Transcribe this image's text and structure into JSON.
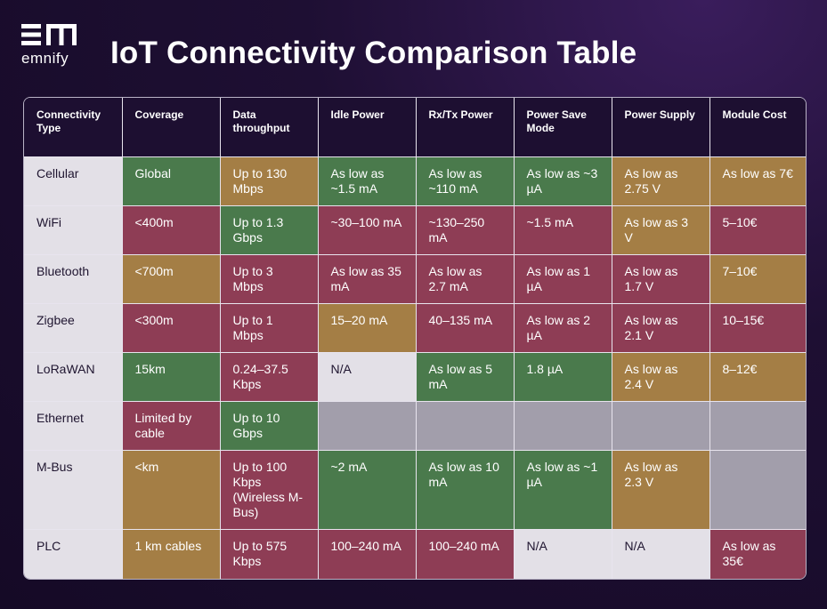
{
  "brand": {
    "logo_text": "emnify"
  },
  "title": "IoT Connectivity Comparison Table",
  "colors": {
    "good": "#4a7a4c",
    "bad": "#8e3d55",
    "medium": "#a47e45",
    "neutral": "#e3e0e7",
    "empty": "#a29eab",
    "header_bg": "#1d0f31"
  },
  "table": {
    "headers": [
      "Connectivity Type",
      "Coverage",
      "Data throughput",
      "Idle Power",
      "Rx/Tx Power",
      "Power Save Mode",
      "Power Supply",
      "Module Cost"
    ],
    "rows": [
      {
        "cells": [
          {
            "text": "Cellular",
            "c": "n"
          },
          {
            "text": "Global",
            "c": "g"
          },
          {
            "text": "Up to 130 Mbps",
            "c": "y"
          },
          {
            "text": "As low as ~1.5 mA",
            "c": "g"
          },
          {
            "text": "As low as ~110 mA",
            "c": "g"
          },
          {
            "text": "As low as ~3 µA",
            "c": "g"
          },
          {
            "text": "As low as 2.75 V",
            "c": "y"
          },
          {
            "text": "As low as 7€",
            "c": "y"
          }
        ]
      },
      {
        "cells": [
          {
            "text": "WiFi",
            "c": "n"
          },
          {
            "text": "<400m",
            "c": "r"
          },
          {
            "text": "Up to 1.3 Gbps",
            "c": "g"
          },
          {
            "text": "~30–100 mA",
            "c": "r"
          },
          {
            "text": "~130–250 mA",
            "c": "r"
          },
          {
            "text": "~1.5 mA",
            "c": "r"
          },
          {
            "text": "As low as 3 V",
            "c": "y"
          },
          {
            "text": "5–10€",
            "c": "r"
          }
        ]
      },
      {
        "cells": [
          {
            "text": "Bluetooth",
            "c": "n"
          },
          {
            "text": "<700m",
            "c": "y"
          },
          {
            "text": "Up to 3 Mbps",
            "c": "r"
          },
          {
            "text": "As low as 35 mA",
            "c": "r"
          },
          {
            "text": "As low as 2.7 mA",
            "c": "r"
          },
          {
            "text": "As low as 1 µA",
            "c": "r"
          },
          {
            "text": "As low as 1.7 V",
            "c": "r"
          },
          {
            "text": "7–10€",
            "c": "y"
          }
        ]
      },
      {
        "cells": [
          {
            "text": "Zigbee",
            "c": "n"
          },
          {
            "text": "<300m",
            "c": "r"
          },
          {
            "text": "Up to 1 Mbps",
            "c": "r"
          },
          {
            "text": "15–20 mA",
            "c": "y"
          },
          {
            "text": "40–135 mA",
            "c": "r"
          },
          {
            "text": "As low as 2 µA",
            "c": "r"
          },
          {
            "text": "As low as 2.1 V",
            "c": "r"
          },
          {
            "text": "10–15€",
            "c": "r"
          }
        ]
      },
      {
        "cells": [
          {
            "text": "LoRaWAN",
            "c": "n"
          },
          {
            "text": "15km",
            "c": "g"
          },
          {
            "text": "0.24–37.5 Kbps",
            "c": "r"
          },
          {
            "text": "N/A",
            "c": "n"
          },
          {
            "text": "As low as 5 mA",
            "c": "g"
          },
          {
            "text": "1.8 µA",
            "c": "g"
          },
          {
            "text": "As low as 2.4 V",
            "c": "y"
          },
          {
            "text": "8–12€",
            "c": "y"
          }
        ]
      },
      {
        "cells": [
          {
            "text": "Ethernet",
            "c": "n"
          },
          {
            "text": "Limited by cable",
            "c": "r"
          },
          {
            "text": "Up to 10 Gbps",
            "c": "g"
          },
          {
            "text": "",
            "c": "e"
          },
          {
            "text": "",
            "c": "e"
          },
          {
            "text": "",
            "c": "e"
          },
          {
            "text": "",
            "c": "e"
          },
          {
            "text": "",
            "c": "e"
          }
        ]
      },
      {
        "cells": [
          {
            "text": "M-Bus",
            "c": "n"
          },
          {
            "text": "<km",
            "c": "y"
          },
          {
            "text": "Up to 100 Kbps (Wireless M-Bus)",
            "c": "r"
          },
          {
            "text": "~2 mA",
            "c": "g"
          },
          {
            "text": "As low as 10 mA",
            "c": "g"
          },
          {
            "text": "As low as ~1 µA",
            "c": "g"
          },
          {
            "text": "As low as 2.3 V",
            "c": "y"
          },
          {
            "text": "",
            "c": "e"
          }
        ]
      },
      {
        "cells": [
          {
            "text": "PLC",
            "c": "n"
          },
          {
            "text": "1 km cables",
            "c": "y"
          },
          {
            "text": "Up to 575 Kbps",
            "c": "r"
          },
          {
            "text": "100–240 mA",
            "c": "r"
          },
          {
            "text": "100–240 mA",
            "c": "r"
          },
          {
            "text": "N/A",
            "c": "n"
          },
          {
            "text": "N/A",
            "c": "n"
          },
          {
            "text": "As low as 35€",
            "c": "r"
          }
        ]
      }
    ]
  }
}
